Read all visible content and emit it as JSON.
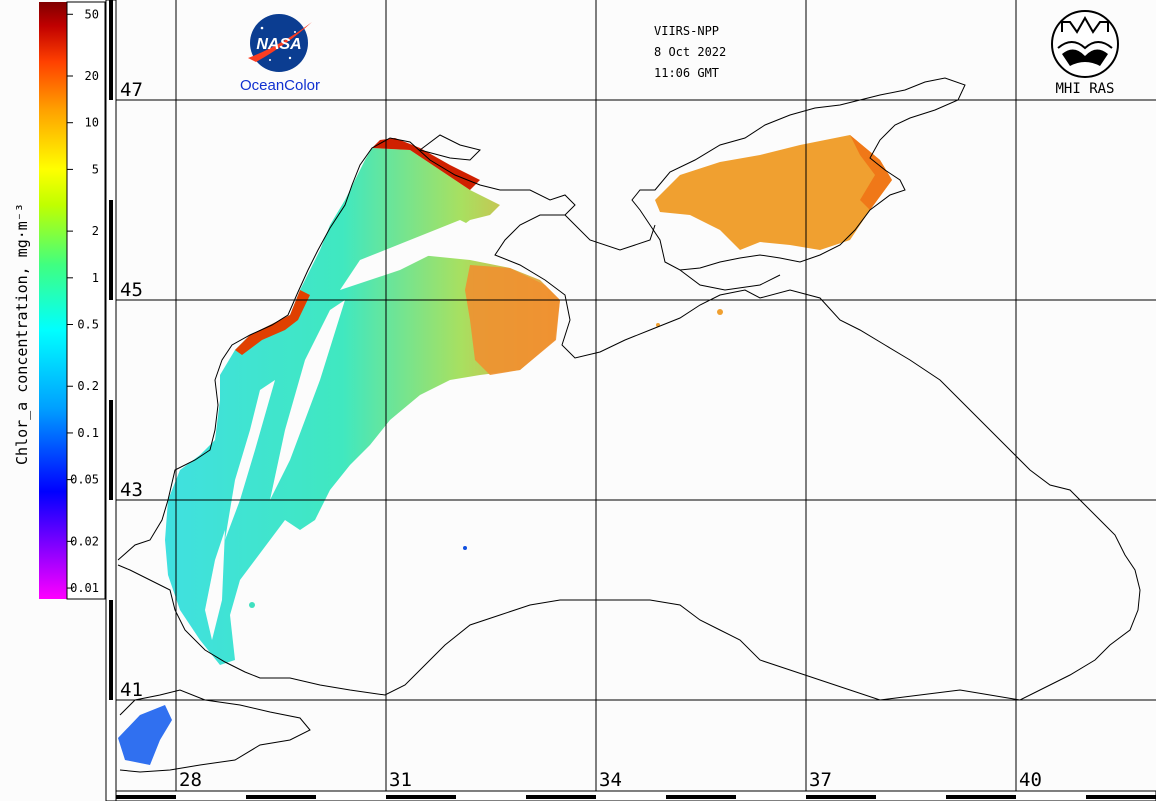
{
  "colorbar": {
    "title": "Chlor_a concentration, mg·m⁻³",
    "ticks": [
      "50",
      "20",
      "10",
      "5",
      "2",
      "1",
      "0.5",
      "0.2",
      "0.1",
      "0.05",
      "0.02",
      "0.01"
    ],
    "stops": [
      "#ff00ff",
      "#8000ff",
      "#0000ff",
      "#00a0ff",
      "#00ffff",
      "#40ff80",
      "#c0ff00",
      "#ffff00",
      "#ffa000",
      "#ff4000",
      "#c00000",
      "#800000"
    ]
  },
  "logos": {
    "nasa": "NASA",
    "oceancolor": "OceanColor",
    "mhi": "MHI RAS"
  },
  "header": {
    "sensor": "VIIRS-NPP",
    "date": "8 Oct 2022",
    "time": "11:06 GMT"
  },
  "grid": {
    "lat_labels": [
      "47",
      "45",
      "43",
      "41"
    ],
    "lon_labels": [
      "28",
      "31",
      "34",
      "37",
      "40"
    ]
  },
  "colors": {
    "coast": "#000000",
    "grid": "#000000",
    "background": "#fcfcfc",
    "nasa_blue": "#0b3d91",
    "nasa_red": "#fc3d21"
  }
}
